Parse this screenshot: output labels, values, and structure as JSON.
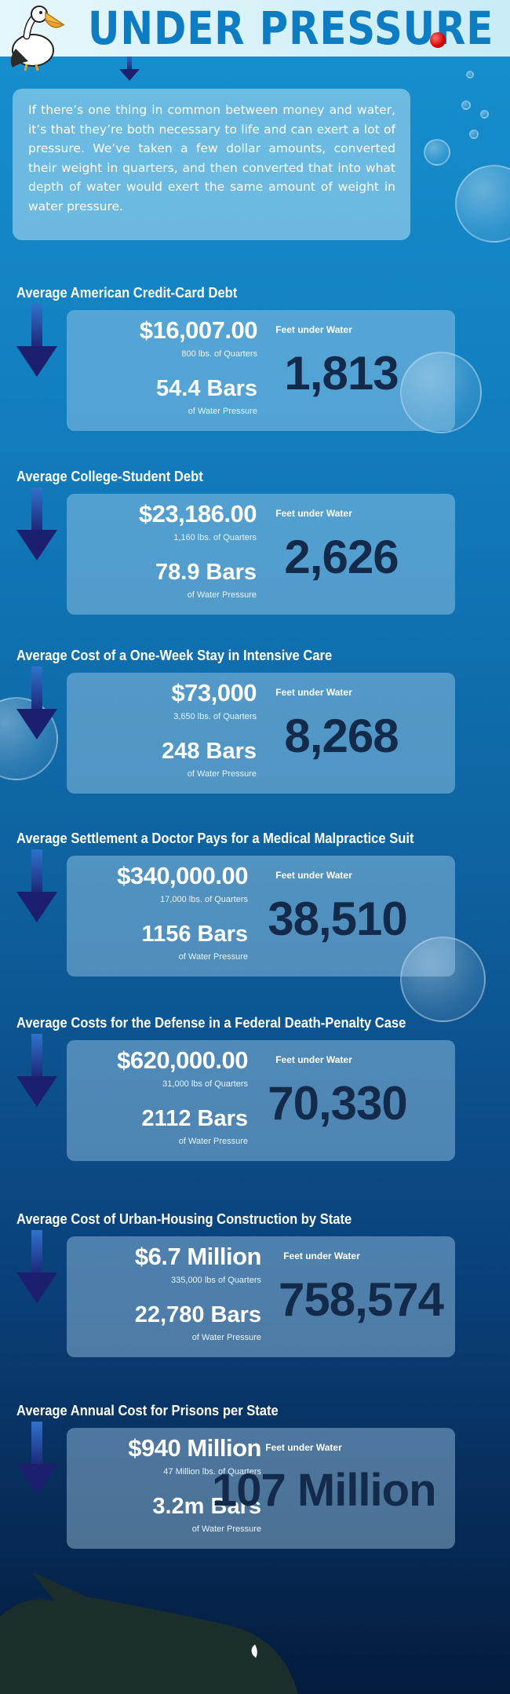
{
  "header": {
    "title": "UNDER PRESSURE"
  },
  "intro": {
    "text": "If there’s one thing in common between money and water, it’s that they’re both necessary to life and can exert a lot of pressure. We’ve taken a few dollar amounts, converted their weight in quarters, and then converted that into what depth of water would exert the same amount of weight in water pressure."
  },
  "labels": {
    "feet_under_water": "Feet under Water"
  },
  "sections": [
    {
      "title": "Average American Credit-Card Debt",
      "amount": "$16,007.00",
      "quarters": "800 lbs. of Quarters",
      "bars": "54.4 Bars",
      "bars_label": "of Water Pressure",
      "feet": "1,813"
    },
    {
      "title": "Average College-Student Debt",
      "amount": "$23,186.00",
      "quarters": "1,160 lbs. of Quarters",
      "bars": "78.9 Bars",
      "bars_label": "of Water Pressure",
      "feet": "2,626"
    },
    {
      "title": "Average Cost of a One-Week Stay in Intensive Care",
      "amount": "$73,000",
      "quarters": "3,650 lbs. of Quarters",
      "bars": "248 Bars",
      "bars_label": "of Water Pressure",
      "feet": "8,268"
    },
    {
      "title": "Average Settlement a Doctor Pays for a Medical Malpractice Suit",
      "amount": "$340,000.00",
      "quarters": "17,000 lbs. of Quarters",
      "bars": "1156 Bars",
      "bars_label": "of Water Pressure",
      "feet": "38,510"
    },
    {
      "title": "Average Costs for the Defense in a Federal Death-Penalty Case",
      "amount": "$620,000.00",
      "quarters": "31,000 lbs of Quarters",
      "bars": "2112 Bars",
      "bars_label": "of Water Pressure",
      "feet": "70,330"
    },
    {
      "title": "Average Cost of Urban-Housing Construction by State",
      "amount": "$6.7 Million",
      "quarters": "335,000 lbs of Quarters",
      "bars": "22,780 Bars",
      "bars_label": "of Water Pressure",
      "feet": "758,574"
    },
    {
      "title": "Average Annual Cost for Prisons per State",
      "amount": "$940 Million",
      "quarters": "47 Million lbs. of Quarters",
      "bars": "3.2m Bars",
      "bars_label": "of Water Pressure",
      "feet": "107 Million"
    }
  ],
  "colors": {
    "title_blue": "#0d7cc2",
    "arrow_navy": "#1b1f6e",
    "feet_navy": "#132a4a"
  },
  "icons": {
    "mascot": "pelican-icon",
    "arrow": "down-arrow-icon",
    "dot": "red-dot-icon",
    "shark": "shark-silhouette-icon"
  }
}
